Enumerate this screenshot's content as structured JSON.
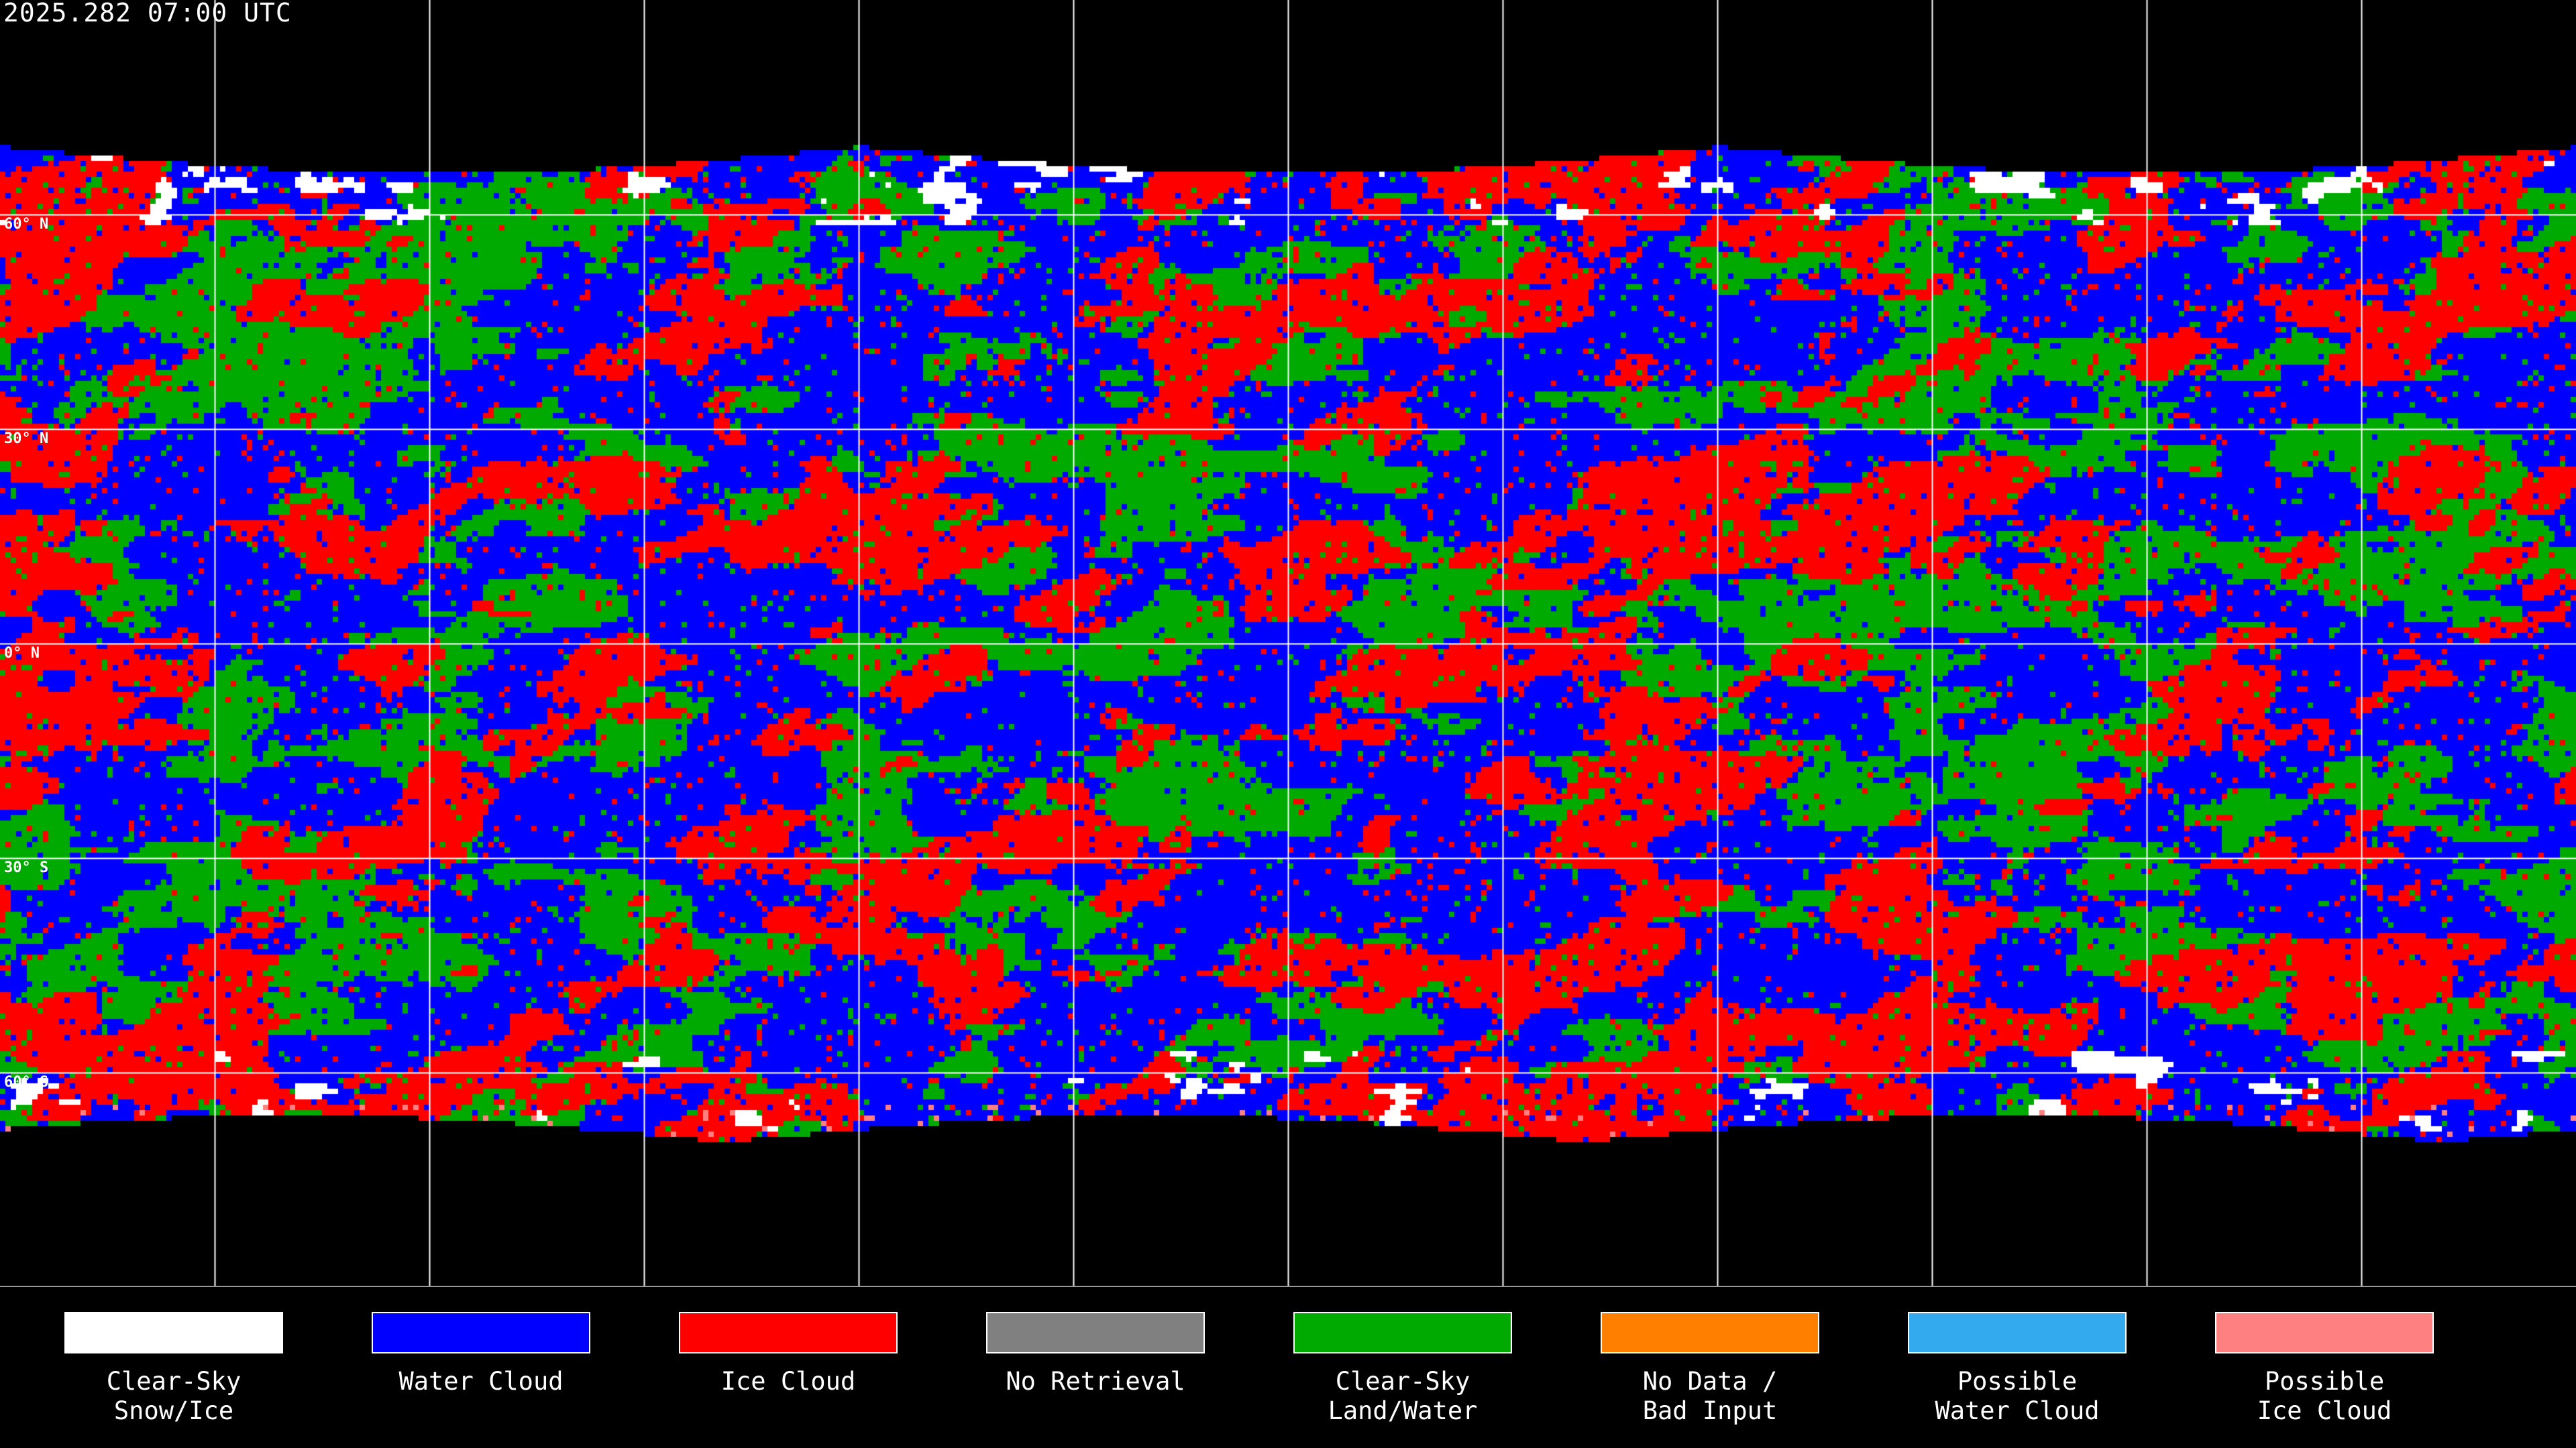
{
  "title": "2025.282 07:00 UTC",
  "map": {
    "projection": "equirectangular",
    "grid_longitude_step_deg": 30,
    "grid_latitude_step_deg": 30,
    "latitude_labels": [
      "60° N",
      "30° N",
      "0° N",
      "30° S",
      "60° S"
    ]
  },
  "legend": [
    {
      "label": "Clear-Sky\nSnow/Ice",
      "color": "#ffffff"
    },
    {
      "label": "Water Cloud",
      "color": "#0000ff"
    },
    {
      "label": "Ice Cloud",
      "color": "#ff0000"
    },
    {
      "label": "No Retrieval",
      "color": "#808080"
    },
    {
      "label": "Clear-Sky\nLand/Water",
      "color": "#00aa00"
    },
    {
      "label": "No Data /\nBad Input",
      "color": "#ff8000"
    },
    {
      "label": "Possible\nWater Cloud",
      "color": "#33aaee"
    },
    {
      "label": "Possible\nIce Cloud",
      "color": "#ff8080"
    }
  ]
}
